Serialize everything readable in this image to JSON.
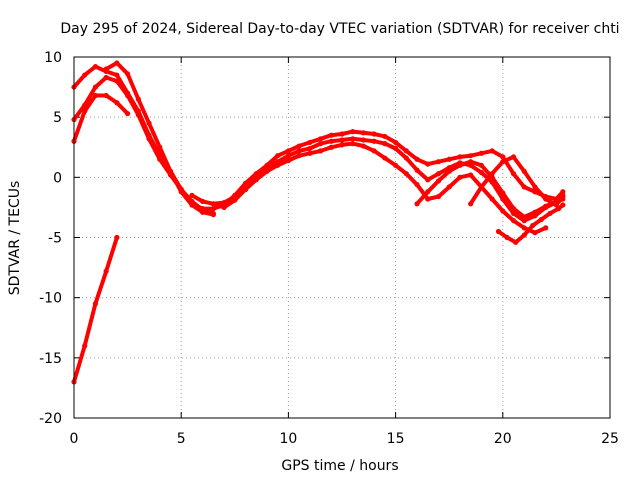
{
  "chart_data": {
    "type": "line",
    "title": "Day 295 of 2024, Sidereal Day-to-day VTEC variation (SDTVAR) for receiver chti",
    "xlabel": "GPS time / hours",
    "ylabel": "SDTVAR / TECUs",
    "xlim": [
      0,
      25
    ],
    "ylim": [
      -20,
      10
    ],
    "xticks": [
      0,
      5,
      10,
      15,
      20,
      25
    ],
    "yticks": [
      -20,
      -15,
      -10,
      -5,
      0,
      5,
      10
    ],
    "grid": true,
    "legend": "none",
    "color": "#ff0000",
    "series": [
      {
        "name": "s1",
        "x": [
          0.0,
          0.5,
          1.0,
          1.5,
          2.0,
          2.5,
          3.0,
          3.5,
          4.0,
          4.5,
          5.0,
          5.5,
          6.0,
          6.5
        ],
        "y": [
          7.5,
          8.5,
          9.2,
          8.8,
          8.5,
          7.0,
          5.5,
          3.5,
          1.8,
          0.5,
          -1.2,
          -2.3,
          -2.9,
          -3.1
        ]
      },
      {
        "name": "s2",
        "x": [
          0.0,
          0.5,
          1.0,
          1.5,
          2.0,
          2.5,
          3.0,
          3.5,
          4.0,
          4.5,
          5.0,
          5.5,
          6.0,
          6.5
        ],
        "y": [
          4.8,
          6.0,
          7.5,
          8.3,
          8.0,
          6.8,
          5.2,
          3.2,
          1.5,
          0.2,
          -1.0,
          -2.0,
          -2.7,
          -3.0
        ]
      },
      {
        "name": "s3",
        "x": [
          0.0,
          0.5,
          1.0,
          1.5,
          2.0,
          2.5
        ],
        "y": [
          3.0,
          5.5,
          6.8,
          6.8,
          6.2,
          5.3
        ]
      },
      {
        "name": "s4",
        "x": [
          1.5,
          2.0,
          2.5,
          3.0,
          3.5,
          4.0,
          4.5,
          5.0,
          5.5,
          6.0,
          6.5,
          7.0,
          7.5,
          8.0,
          8.5,
          9.0,
          9.5,
          10.0,
          10.5,
          11.0,
          11.5,
          12.0,
          12.5,
          13.0,
          13.5,
          14.0,
          14.5,
          15.0,
          15.5,
          16.0,
          16.5,
          17.0,
          17.5,
          18.0,
          18.5,
          19.0,
          19.5,
          20.0,
          20.5,
          21.0,
          21.5,
          22.0,
          22.5,
          22.8
        ],
        "y": [
          9.0,
          9.5,
          8.6,
          6.5,
          4.5,
          2.5,
          0.5,
          -1.0,
          -2.2,
          -2.6,
          -2.6,
          -2.3,
          -1.5,
          -0.5,
          0.3,
          1.0,
          1.8,
          2.2,
          2.6,
          2.9,
          3.2,
          3.5,
          3.6,
          3.8,
          3.7,
          3.6,
          3.4,
          2.9,
          2.2,
          1.5,
          1.1,
          1.3,
          1.5,
          1.7,
          1.8,
          2.0,
          2.2,
          1.7,
          0.3,
          -0.8,
          -1.2,
          -1.6,
          -1.8,
          -1.2
        ]
      },
      {
        "name": "s5",
        "x": [
          5.5,
          6.0,
          6.5,
          7.0,
          7.5,
          8.0,
          8.5,
          9.0,
          9.5,
          10.0,
          10.5,
          11.0,
          11.5,
          12.0,
          12.5,
          13.0,
          13.5,
          14.0,
          14.5,
          15.0,
          15.5,
          16.0,
          16.5,
          17.0,
          17.5,
          18.0,
          18.5,
          19.0,
          19.5,
          20.0,
          20.5,
          21.0,
          21.5,
          22.0,
          22.5,
          22.8
        ],
        "y": [
          -1.5,
          -2.0,
          -2.2,
          -2.1,
          -1.6,
          -1.0,
          0.0,
          0.8,
          1.3,
          1.8,
          2.2,
          2.4,
          2.8,
          3.0,
          3.1,
          3.2,
          3.1,
          3.0,
          2.8,
          2.4,
          1.6,
          0.6,
          -0.2,
          0.3,
          0.8,
          1.2,
          1.0,
          0.4,
          -0.4,
          -1.8,
          -3.0,
          -3.6,
          -3.2,
          -2.5,
          -2.1,
          -1.8
        ]
      },
      {
        "name": "s6",
        "x": [
          6.5,
          7.0,
          7.5,
          8.0,
          8.5,
          9.0,
          9.5,
          10.0,
          10.5,
          11.0,
          11.5,
          12.0,
          12.5,
          13.0,
          13.5,
          14.0,
          14.5,
          15.0,
          15.5,
          16.0,
          16.5,
          17.0,
          17.5,
          18.0,
          18.5,
          19.0,
          19.5,
          20.0,
          20.5,
          21.0,
          21.5,
          22.0
        ],
        "y": [
          -2.2,
          -2.5,
          -1.9,
          -1.0,
          -0.2,
          0.5,
          1.0,
          1.4,
          1.8,
          2.0,
          2.2,
          2.5,
          2.7,
          2.8,
          2.6,
          2.2,
          1.6,
          1.0,
          0.3,
          -0.6,
          -1.8,
          -1.6,
          -0.8,
          0.0,
          0.2,
          -0.8,
          -1.8,
          -2.8,
          -3.6,
          -4.2,
          -4.6,
          -4.2
        ]
      },
      {
        "name": "s7",
        "x": [
          16.0,
          16.5,
          17.0,
          17.5,
          18.0,
          18.5,
          19.0,
          19.5,
          20.0,
          20.5,
          21.0,
          21.5,
          22.0,
          22.5,
          22.8
        ],
        "y": [
          -2.2,
          -1.2,
          -0.3,
          0.5,
          1.0,
          1.3,
          1.0,
          0.0,
          -1.3,
          -2.6,
          -3.3,
          -2.9,
          -2.4,
          -2.0,
          -1.6
        ]
      },
      {
        "name": "s8",
        "x": [
          18.5,
          19.0,
          19.5,
          20.0,
          20.5,
          21.0,
          21.5,
          22.0,
          22.5,
          22.8
        ],
        "y": [
          -2.2,
          -0.8,
          0.3,
          1.3,
          1.7,
          0.5,
          -0.8,
          -1.8,
          -2.3,
          -1.5
        ]
      },
      {
        "name": "s9",
        "x": [
          19.8,
          20.2,
          20.6,
          21.0,
          21.4,
          21.8,
          22.2,
          22.6,
          22.8
        ],
        "y": [
          -4.5,
          -5.0,
          -5.4,
          -4.8,
          -4.0,
          -3.5,
          -3.0,
          -2.6,
          -2.3
        ]
      },
      {
        "name": "s10",
        "x": [
          0.0,
          0.5,
          1.0,
          1.5,
          2.0
        ],
        "y": [
          -17.0,
          -14.0,
          -10.5,
          -7.8,
          -5.0
        ]
      }
    ]
  }
}
